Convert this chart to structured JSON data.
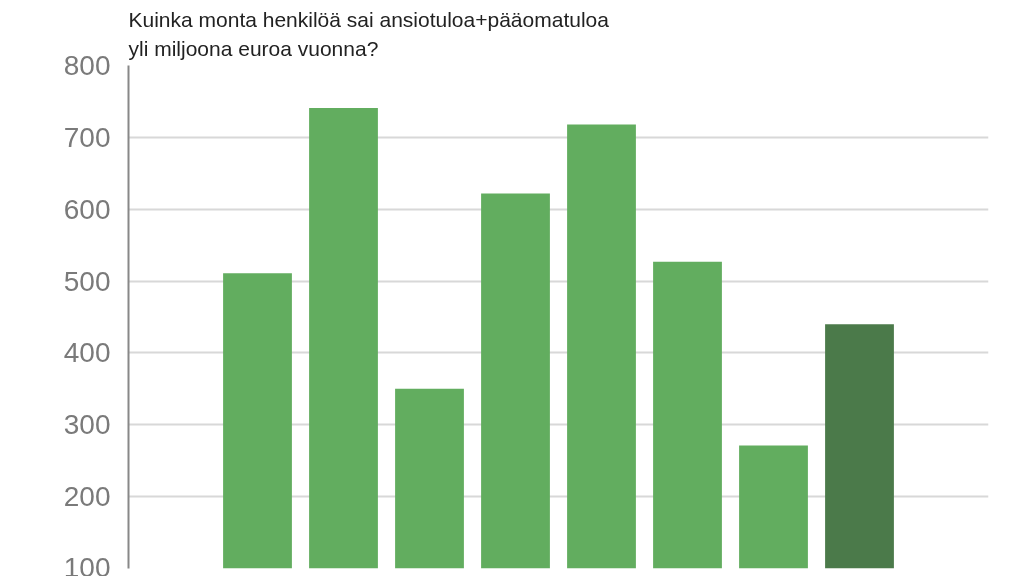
{
  "chart_data": {
    "type": "bar",
    "title": "Kuinka monta henkilöä sai ansiotuloa+pääomatuloa\nyli miljoona euroa vuonna?",
    "categories": [
      null,
      null,
      null,
      null,
      null,
      null,
      null,
      null,
      null,
      null
    ],
    "values": [
      null,
      511,
      741,
      350,
      622,
      718,
      527,
      271,
      440,
      null
    ],
    "colors": [
      "#62ad5f",
      "#62ad5f",
      "#62ad5f",
      "#62ad5f",
      "#62ad5f",
      "#62ad5f",
      "#62ad5f",
      "#62ad5f",
      "#4b7a4a",
      "#62ad5f"
    ],
    "ylim": [
      100,
      800
    ],
    "yticks": [
      100,
      200,
      300,
      400,
      500,
      600,
      700,
      800
    ],
    "grid": "y",
    "tick_labels": "y"
  }
}
